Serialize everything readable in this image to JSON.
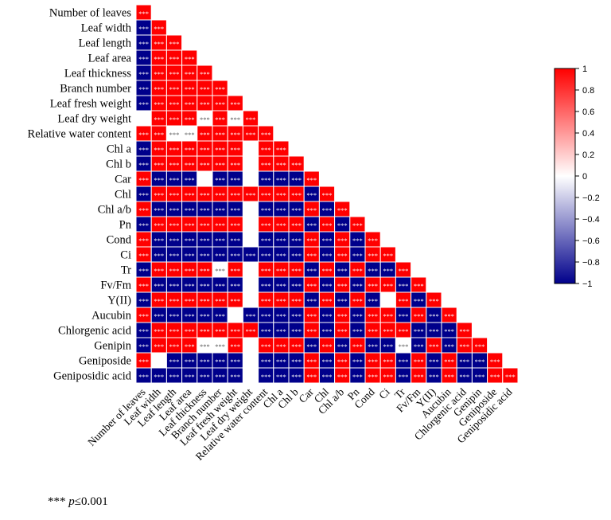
{
  "chart_data": {
    "type": "heatmap",
    "title": "",
    "subtitle": "",
    "variables": [
      "Number of leaves",
      "Leaf width",
      "Leaf length",
      "Leaf area",
      "Leaf thickness",
      "Branch number",
      "Leaf fresh weight",
      "Leaf dry weight",
      "Relative water content",
      "Chl a",
      "Chl b",
      "Car",
      "Chl",
      "Chl a/b",
      "Pn",
      "Cond",
      "Ci",
      "Tr",
      "Fv/Fm",
      "Y(II)",
      "Aucubin",
      "Chlorgenic acid",
      "Genipin",
      "Geniposide",
      "Geniposidic acid"
    ],
    "matrix_signs": [
      "R",
      "BR",
      "BRR",
      "BRRR",
      "BRRRR",
      "BRRRRR",
      "BRRRRRR",
      "WRRRSRSR",
      "RRSSRRRRR",
      "BRRRRRRWRR",
      "BRRRRRRWRRR",
      "RBBBWBBWBBBR",
      "BRRRRRRRRRRBR",
      "RBBBBBBWBBBRBR",
      "BRRRRRRWRRRBRBR",
      "RBBBBBBWBBBRBRBR",
      "RBBBBBBBBBBRBRBRR",
      "BRRRRSRWRRRBRBRBBR",
      "RBBBBBBWBBBRBRBRRBR",
      "BRRRRRRWRRRBRBRBWRBR",
      "RBBBBBWBBBBRBRBRRBRBR",
      "BRRRRRRRBBBRBRBRRRBBBR",
      "BRRRSSRWRRRBRBRBBSBRBRR",
      "RWBBBBBWBBBRBRBRRBRBRBBR",
      "BBBBBBBWBBBRBRBRRBRBRBBRR"
    ],
    "legend": {
      "type": "colorbar",
      "placement": "right",
      "min": -1,
      "max": 1,
      "ticks": [
        1,
        0.8,
        0.6,
        0.4,
        0.2,
        0,
        -0.2,
        -0.4,
        -0.6,
        -0.8,
        -1
      ]
    },
    "cell_label": "***",
    "colors": {
      "positive": "#ff0000",
      "negative": "#00008b",
      "zero": "#ffffff",
      "label_light": "#ffffff",
      "label_dark": "#555555"
    }
  },
  "footnote": {
    "stars": "***",
    "p": "p",
    "rest": "≤0.001"
  }
}
